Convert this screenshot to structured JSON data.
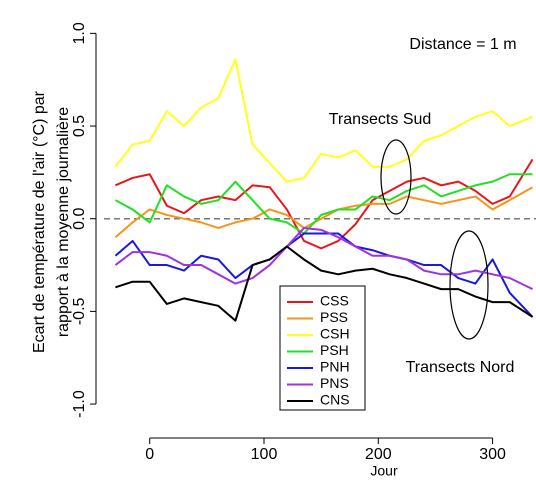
{
  "chart_data": {
    "type": "line",
    "x_label": "Jour",
    "y_label": [
      "Ecart de température de l'air (°C) par",
      "rapport à la moyenne journalière"
    ],
    "annotations": [
      "Distance = 1 m",
      "Transects Sud",
      "Transects Nord"
    ],
    "xlim": [
      -40,
      338
    ],
    "ylim": [
      -1.14,
      1.18
    ],
    "xticks": [
      0,
      100,
      200,
      300
    ],
    "yticks": [
      {
        "value": 1,
        "label": "1.0"
      },
      0.5,
      {
        "value": 0,
        "label": "0.0"
      },
      -0.5,
      {
        "value": -1,
        "label": "-1.0"
      }
    ],
    "reference_line": 0,
    "x": [
      -30,
      -15,
      0,
      15,
      30,
      45,
      60,
      75,
      90,
      105,
      120,
      135,
      150,
      165,
      180,
      195,
      210,
      225,
      240,
      255,
      270,
      285,
      300,
      315,
      335
    ],
    "series": [
      {
        "name": "CSS",
        "color": "#e8161b",
        "values": [
          0.18,
          0.22,
          0.24,
          0.07,
          0.03,
          0.1,
          0.12,
          0.1,
          0.18,
          0.17,
          0.05,
          -0.12,
          -0.16,
          -0.12,
          -0.03,
          0.1,
          0.15,
          0.2,
          0.22,
          0.18,
          0.2,
          0.15,
          0.08,
          0.12,
          0.32
        ]
      },
      {
        "name": "PSS",
        "color": "#f7941d",
        "values": [
          -0.1,
          -0.02,
          0.05,
          0.02,
          0.0,
          -0.02,
          -0.05,
          -0.02,
          0.0,
          0.05,
          0.02,
          -0.05,
          0.0,
          0.05,
          0.07,
          0.08,
          0.08,
          0.12,
          0.1,
          0.08,
          0.1,
          0.12,
          0.05,
          0.1,
          0.17
        ]
      },
      {
        "name": "CSH",
        "color": "#ffff1a",
        "values": [
          0.28,
          0.4,
          0.42,
          0.58,
          0.5,
          0.6,
          0.65,
          0.86,
          0.4,
          0.3,
          0.2,
          0.22,
          0.35,
          0.33,
          0.37,
          0.28,
          0.28,
          0.32,
          0.42,
          0.45,
          0.5,
          0.55,
          0.58,
          0.5,
          0.55
        ]
      },
      {
        "name": "PSH",
        "color": "#22e022",
        "values": [
          0.1,
          0.05,
          -0.02,
          0.18,
          0.12,
          0.08,
          0.1,
          0.2,
          0.1,
          0.0,
          -0.02,
          -0.08,
          0.02,
          0.05,
          0.05,
          0.12,
          0.1,
          0.15,
          0.18,
          0.12,
          0.15,
          0.18,
          0.2,
          0.24,
          0.24
        ]
      },
      {
        "name": "PNH",
        "color": "#1a1adf",
        "values": [
          -0.2,
          -0.12,
          -0.25,
          -0.25,
          -0.28,
          -0.2,
          -0.22,
          -0.32,
          -0.25,
          -0.22,
          -0.15,
          -0.08,
          -0.08,
          -0.08,
          -0.15,
          -0.17,
          -0.2,
          -0.22,
          -0.25,
          -0.25,
          -0.32,
          -0.35,
          -0.22,
          -0.4,
          -0.53
        ]
      },
      {
        "name": "PNS",
        "color": "#a032e0",
        "values": [
          -0.25,
          -0.18,
          -0.18,
          -0.2,
          -0.25,
          -0.25,
          -0.3,
          -0.35,
          -0.32,
          -0.25,
          -0.15,
          -0.05,
          -0.06,
          -0.1,
          -0.15,
          -0.2,
          -0.2,
          -0.22,
          -0.28,
          -0.3,
          -0.3,
          -0.28,
          -0.3,
          -0.32,
          -0.38
        ]
      },
      {
        "name": "CNS",
        "color": "#000000",
        "values": [
          -0.37,
          -0.34,
          -0.34,
          -0.46,
          -0.43,
          -0.45,
          -0.47,
          -0.55,
          -0.25,
          -0.22,
          -0.15,
          -0.22,
          -0.28,
          -0.3,
          -0.28,
          -0.27,
          -0.3,
          -0.32,
          -0.35,
          -0.38,
          -0.38,
          -0.42,
          -0.45,
          -0.45,
          -0.53
        ]
      }
    ]
  }
}
